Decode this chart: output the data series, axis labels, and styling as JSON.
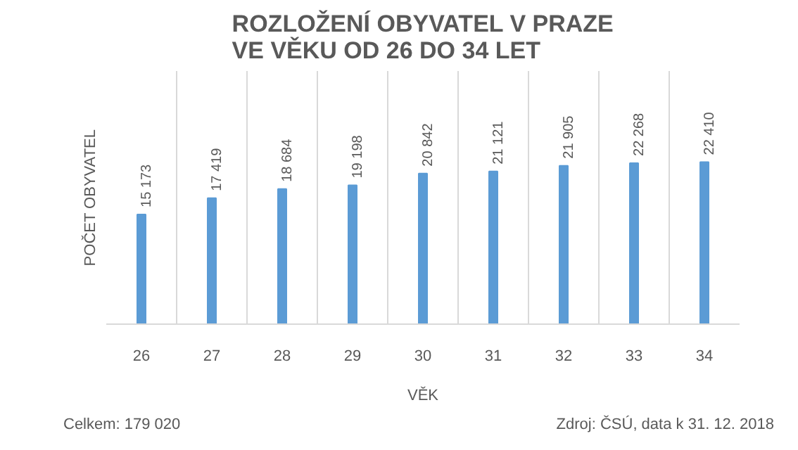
{
  "chart_data": {
    "type": "bar",
    "title": "ROZLOŽENÍ OBYVATEL V PRAZE\nVE VĚKU OD 26 DO 34 LET",
    "xlabel": "VĚK",
    "ylabel": "POČET OBYVATEL",
    "categories": [
      "26",
      "27",
      "28",
      "29",
      "30",
      "31",
      "32",
      "33",
      "34"
    ],
    "values": [
      15173,
      17419,
      18684,
      19198,
      20842,
      21121,
      21905,
      22268,
      22410
    ],
    "value_labels": [
      "15 173",
      "17 419",
      "18 684",
      "19 198",
      "20 842",
      "21 121",
      "21 905",
      "22 268",
      "22 410"
    ],
    "color": "#5b9bd5",
    "ylim": [
      0,
      35000
    ],
    "grid": "x",
    "annotations": [
      "Celkem: 179 020",
      "Zdroj: ČSÚ, data k 31. 12. 2018"
    ]
  }
}
